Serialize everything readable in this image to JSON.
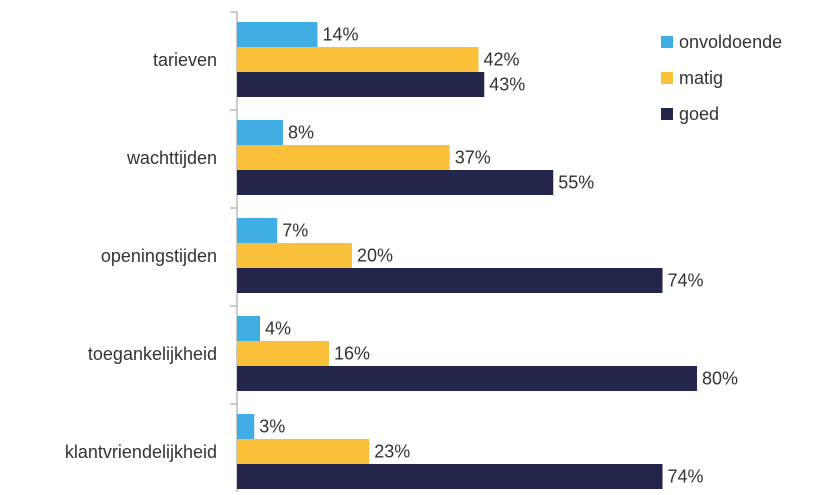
{
  "chart_data": {
    "type": "bar",
    "orientation": "horizontal",
    "categories": [
      "tarieven",
      "wachttijden",
      "openingstijden",
      "toegankelijkheid",
      "klantvriendelijkheid"
    ],
    "series": [
      {
        "name": "onvoldoende",
        "color": "#41aee3",
        "values": [
          14,
          8,
          7,
          4,
          3
        ],
        "value_labels": [
          "14%",
          "8%",
          "7%",
          "4%",
          "3%"
        ]
      },
      {
        "name": "matig",
        "color": "#fbc03a",
        "values": [
          42,
          37,
          20,
          16,
          23
        ],
        "value_labels": [
          "42%",
          "37%",
          "20%",
          "16%",
          "23%"
        ]
      },
      {
        "name": "goed",
        "color": "#23264a",
        "values": [
          43,
          55,
          74,
          80,
          74
        ],
        "value_labels": [
          "43%",
          "55%",
          "74%",
          "80%",
          "74%"
        ]
      }
    ],
    "legend": "top-right"
  }
}
